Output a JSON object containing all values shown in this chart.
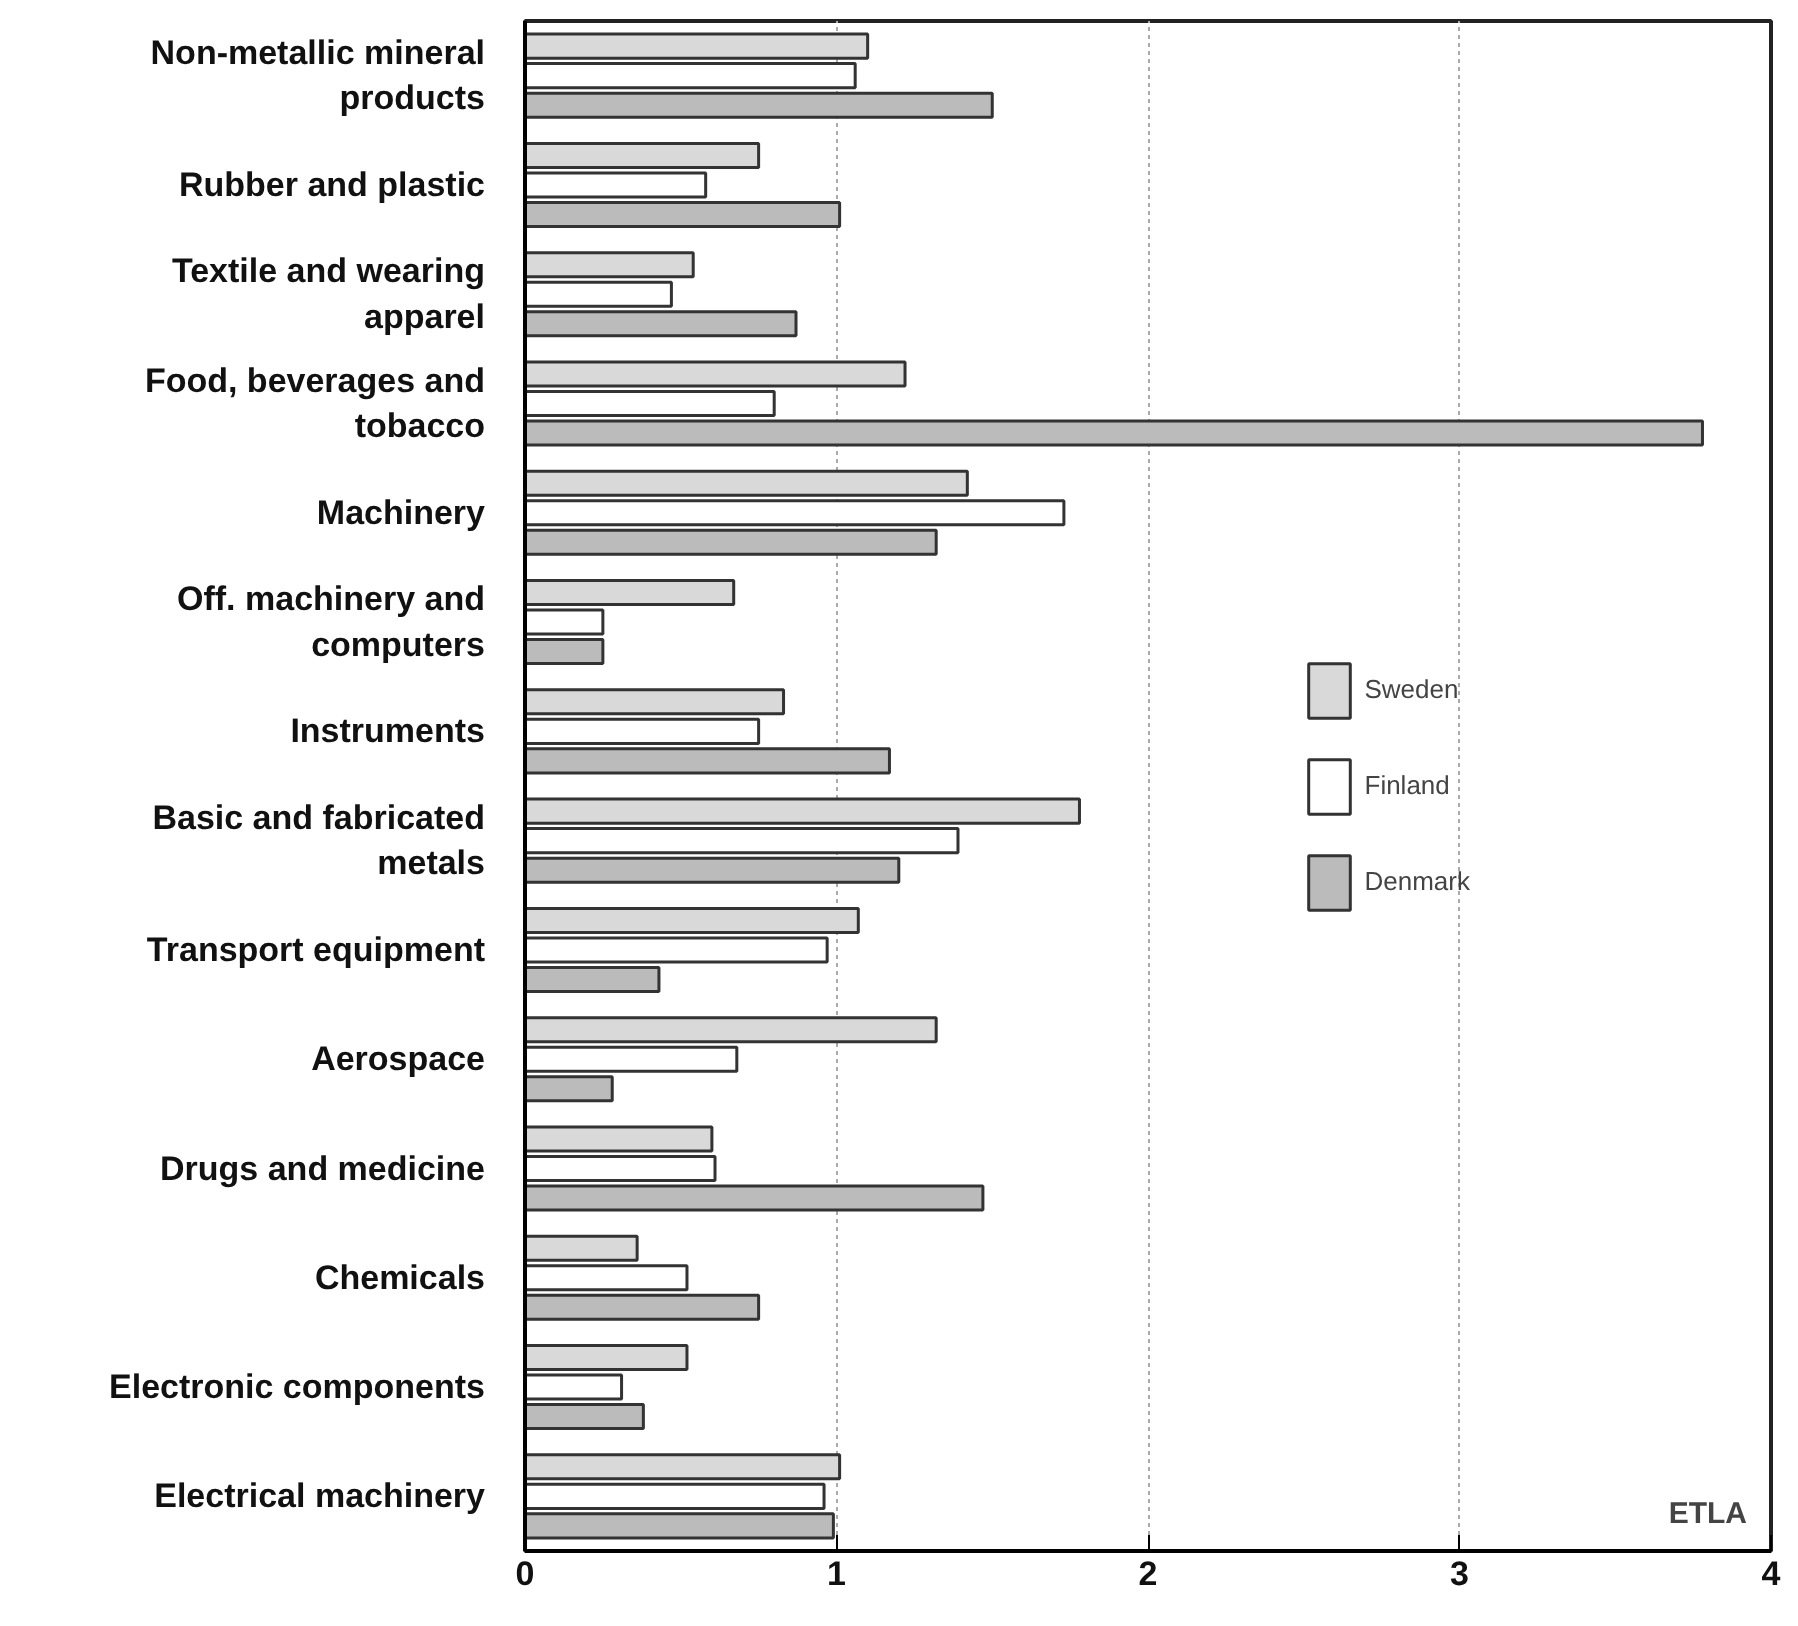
{
  "chart_data": {
    "type": "bar",
    "orientation": "horizontal",
    "categories": [
      "Non-metallic mineral products",
      "Rubber and plastic",
      "Textile and wearing apparel",
      "Food, beverages and tobacco",
      "Machinery",
      "Off. machinery and computers",
      "Instruments",
      "Basic and fabricated metals",
      "Transport equipment",
      "Aerospace",
      "Drugs and medicine",
      "Chemicals",
      "Electronic components",
      "Electrical machinery"
    ],
    "series": [
      {
        "name": "Sweden",
        "color": "#d9d9d9",
        "values": [
          1.1,
          0.75,
          0.54,
          1.22,
          1.42,
          0.67,
          0.83,
          1.78,
          1.07,
          1.32,
          0.6,
          0.36,
          0.52,
          1.01
        ]
      },
      {
        "name": "Finland",
        "color": "#ffffff",
        "values": [
          1.06,
          0.58,
          0.47,
          0.8,
          1.73,
          0.25,
          0.75,
          1.39,
          0.97,
          0.68,
          0.61,
          0.52,
          0.31,
          0.96
        ]
      },
      {
        "name": "Denmark",
        "color": "#bbbbbb",
        "values": [
          1.5,
          1.01,
          0.87,
          3.78,
          1.32,
          0.25,
          1.17,
          1.2,
          0.43,
          0.28,
          1.47,
          0.75,
          0.38,
          0.99
        ]
      }
    ],
    "xlim": [
      0,
      4
    ],
    "xticks": [
      0,
      1,
      2,
      3,
      4
    ],
    "grid": "x",
    "legend": "right",
    "annotations": [
      "ETLA"
    ]
  }
}
